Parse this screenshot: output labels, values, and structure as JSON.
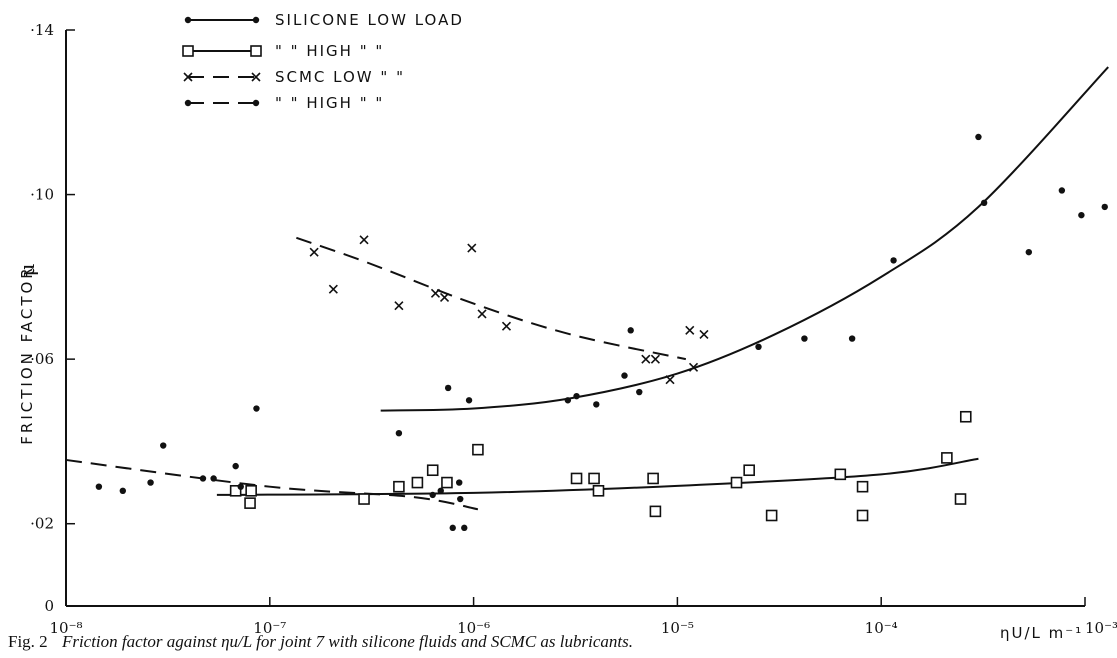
{
  "chart_data": {
    "type": "scatter",
    "title": "",
    "ylabel": "FRICTION FACTOR",
    "ylabel_symbol": "μ",
    "xlabel": "ηU/L m⁻¹",
    "x_scale": "log",
    "xlim": [
      1e-08,
      0.001
    ],
    "ylim": [
      0,
      0.14
    ],
    "x_ticks": [
      {
        "value": 1e-08,
        "label": "10⁻⁸"
      },
      {
        "value": 1e-07,
        "label": "10⁻⁷"
      },
      {
        "value": 1e-06,
        "label": "10⁻⁶"
      },
      {
        "value": 1e-05,
        "label": "10⁻⁵"
      },
      {
        "value": 0.0001,
        "label": "10⁻⁴"
      },
      {
        "value": 0.001,
        "label": "10⁻³"
      }
    ],
    "y_ticks": [
      {
        "value": 0,
        "label": "0"
      },
      {
        "value": 0.02,
        "label": "·02"
      },
      {
        "value": 0.06,
        "label": "·06"
      },
      {
        "value": 0.1,
        "label": "·10"
      },
      {
        "value": 0.14,
        "label": "·14"
      }
    ],
    "grid": false,
    "legend_position": "top-left",
    "series": [
      {
        "name": "SILICONE LOW LOAD",
        "legend_label": "SILICONE LOW LOAD",
        "marker": "dot",
        "line": "solid",
        "points": [
          [
            4.3e-07,
            0.042
          ],
          [
            7.5e-07,
            0.053
          ],
          [
            9.5e-07,
            0.05
          ],
          [
            2.9e-06,
            0.05
          ],
          [
            3.2e-06,
            0.051
          ],
          [
            4e-06,
            0.049
          ],
          [
            5.5e-06,
            0.056
          ],
          [
            5.9e-06,
            0.067
          ],
          [
            6.5e-06,
            0.052
          ],
          [
            2.5e-05,
            0.063
          ],
          [
            4.2e-05,
            0.065
          ],
          [
            7.2e-05,
            0.065
          ],
          [
            0.000115,
            0.084
          ],
          [
            0.0003,
            0.114
          ],
          [
            0.00032,
            0.098
          ],
          [
            0.00053,
            0.086
          ],
          [
            0.00077,
            0.101
          ],
          [
            0.00096,
            0.095
          ],
          [
            0.00125,
            0.097
          ]
        ],
        "curve": [
          [
            3.5e-07,
            0.0475
          ],
          [
            1e-06,
            0.048
          ],
          [
            3e-06,
            0.0505
          ],
          [
            1e-05,
            0.0565
          ],
          [
            3e-05,
            0.066
          ],
          [
            0.0001,
            0.08
          ],
          [
            0.0003,
            0.097
          ],
          [
            0.0013,
            0.131
          ]
        ]
      },
      {
        "name": "SILICONE HIGH LOAD",
        "legend_label": "\"  \"  HIGH  \"  \"",
        "marker": "square",
        "line": "solid",
        "points": [
          [
            6.8e-08,
            0.028
          ],
          [
            8e-08,
            0.025
          ],
          [
            8.1e-08,
            0.028
          ],
          [
            2.9e-07,
            0.026
          ],
          [
            4.3e-07,
            0.029
          ],
          [
            5.3e-07,
            0.03
          ],
          [
            6.3e-07,
            0.033
          ],
          [
            7.4e-07,
            0.03
          ],
          [
            1.05e-06,
            0.038
          ],
          [
            3.2e-06,
            0.031
          ],
          [
            3.9e-06,
            0.031
          ],
          [
            4.1e-06,
            0.028
          ],
          [
            7.6e-06,
            0.031
          ],
          [
            7.8e-06,
            0.023
          ],
          [
            1.95e-05,
            0.03
          ],
          [
            2.25e-05,
            0.033
          ],
          [
            2.9e-05,
            0.022
          ],
          [
            6.3e-05,
            0.032
          ],
          [
            8.1e-05,
            0.029
          ],
          [
            8.1e-05,
            0.022
          ],
          [
            0.00021,
            0.036
          ],
          [
            0.000245,
            0.026
          ],
          [
            0.00026,
            0.046
          ]
        ],
        "curve": [
          [
            5.5e-08,
            0.027
          ],
          [
            1e-06,
            0.0275
          ],
          [
            1e-05,
            0.0292
          ],
          [
            0.0001,
            0.032
          ],
          [
            0.0003,
            0.0358
          ]
        ]
      },
      {
        "name": "SCMC LOW LOAD",
        "legend_label": "SCMC  LOW  \"  \"",
        "marker": "cross",
        "line": "dashed",
        "points": [
          [
            1.65e-07,
            0.086
          ],
          [
            2.05e-07,
            0.077
          ],
          [
            2.9e-07,
            0.089
          ],
          [
            4.3e-07,
            0.073
          ],
          [
            6.5e-07,
            0.076
          ],
          [
            7.2e-07,
            0.075
          ],
          [
            9.8e-07,
            0.087
          ],
          [
            1.1e-06,
            0.071
          ],
          [
            1.45e-06,
            0.068
          ],
          [
            7e-06,
            0.06
          ],
          [
            7.8e-06,
            0.06
          ],
          [
            9.2e-06,
            0.055
          ],
          [
            1.15e-05,
            0.067
          ],
          [
            1.35e-05,
            0.066
          ],
          [
            1.2e-05,
            0.058
          ]
        ],
        "curve": [
          [
            1.35e-07,
            0.0895
          ],
          [
            3e-07,
            0.0835
          ],
          [
            1e-06,
            0.0735
          ],
          [
            3e-06,
            0.066
          ],
          [
            1.1e-05,
            0.06
          ]
        ]
      },
      {
        "name": "SCMC HIGH LOAD",
        "legend_label": "\"  \"  HIGH  \"  \"",
        "marker": "dot",
        "line": "dashed",
        "points": [
          [
            1.45e-08,
            0.029
          ],
          [
            1.9e-08,
            0.028
          ],
          [
            2.6e-08,
            0.03
          ],
          [
            3e-08,
            0.039
          ],
          [
            4.7e-08,
            0.031
          ],
          [
            5.3e-08,
            0.031
          ],
          [
            6.8e-08,
            0.034
          ],
          [
            7.2e-08,
            0.029
          ],
          [
            8.6e-08,
            0.048
          ],
          [
            6.3e-07,
            0.027
          ],
          [
            6.9e-07,
            0.028
          ],
          [
            7.9e-07,
            0.019
          ],
          [
            8.5e-07,
            0.03
          ],
          [
            8.6e-07,
            0.026
          ],
          [
            9e-07,
            0.019
          ]
        ],
        "curve": [
          [
            1e-08,
            0.0355
          ],
          [
            1e-07,
            0.029
          ],
          [
            5e-07,
            0.0265
          ],
          [
            1.05e-06,
            0.0235
          ]
        ]
      }
    ],
    "caption": {
      "label": "Fig. 2",
      "text": "Friction factor against ηu/L for joint 7 with silicone fluids and SCMC as lubricants."
    }
  }
}
